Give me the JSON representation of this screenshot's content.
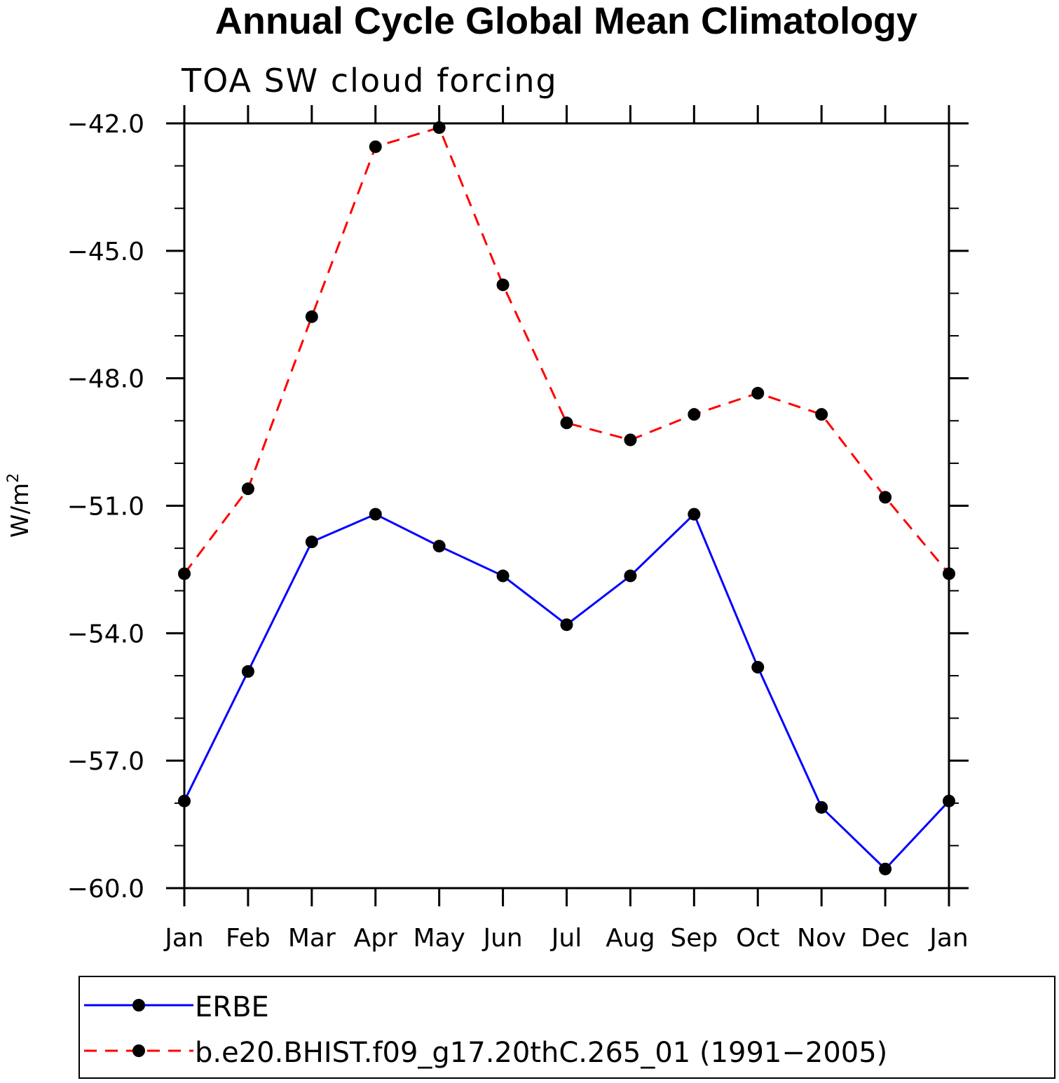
{
  "chart_data": {
    "type": "line",
    "title": "Annual Cycle Global Mean Climatology",
    "subtitle": "TOA SW cloud forcing",
    "xlabel": "",
    "ylabel": "W/m",
    "ylabel_superscript": "2",
    "categories": [
      "Jan",
      "Feb",
      "Mar",
      "Apr",
      "May",
      "Jun",
      "Jul",
      "Aug",
      "Sep",
      "Oct",
      "Nov",
      "Dec",
      "Jan"
    ],
    "ylim": [
      -60.0,
      -42.0
    ],
    "yticks_major": [
      -60.0,
      -57.0,
      -54.0,
      -51.0,
      -48.0,
      -45.0,
      -42.0
    ],
    "ytick_labels": [
      "−60.0",
      "−57.0",
      "−54.0",
      "−51.0",
      "−48.0",
      "−45.0",
      "−42.0"
    ],
    "yticks_minor": [
      -59.0,
      -58.0,
      -56.0,
      -55.0,
      -53.0,
      -52.0,
      -50.0,
      -49.0,
      -47.0,
      -46.0,
      -44.0,
      -43.0
    ],
    "series": [
      {
        "name": "ERBE",
        "color": "#0000ff",
        "line_style": "solid",
        "marker": "filled-circle",
        "values": [
          -57.95,
          -54.9,
          -51.85,
          -51.2,
          -51.95,
          -52.65,
          -53.8,
          -52.65,
          -51.2,
          -54.8,
          -58.1,
          -59.55,
          -57.95
        ]
      },
      {
        "name": "b.e20.BHIST.f09_g17.20thC.265_01 (1991−2005)",
        "color": "#ff0000",
        "line_style": "dashed",
        "marker": "filled-circle",
        "values": [
          -52.6,
          -50.6,
          -46.55,
          -42.55,
          -42.1,
          -45.8,
          -49.05,
          -49.45,
          -48.85,
          -48.35,
          -48.85,
          -50.8,
          -52.6
        ]
      }
    ],
    "legend_position": "bottom"
  }
}
